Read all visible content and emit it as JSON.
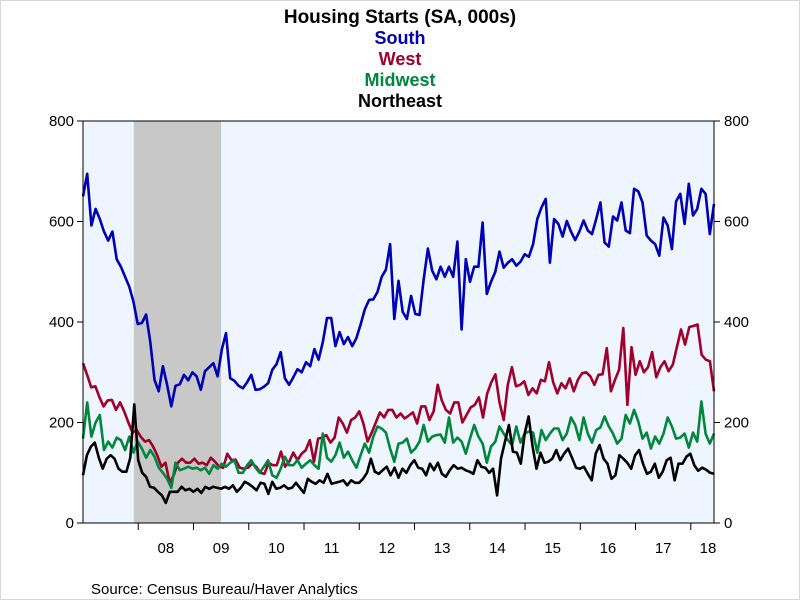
{
  "chart_data": {
    "type": "line",
    "title": "Housing Starts (SA, 000s)",
    "source": "Source:  Census Bureau/Haver Analytics",
    "ylim": [
      0,
      800
    ],
    "yticks": [
      "0",
      "200",
      "400",
      "600",
      "800"
    ],
    "yticks_right": [
      "0",
      "200",
      "400",
      "600",
      "800"
    ],
    "xlabels": [
      "08",
      "09",
      "10",
      "11",
      "12",
      "13",
      "14",
      "15",
      "16",
      "17",
      "18"
    ],
    "recession": {
      "start": 2007.92,
      "end": 2009.5
    },
    "colors": {
      "plot_bg": "#eef5ff",
      "recession": "#c8c8c8",
      "South": "#0000b4",
      "West": "#a0002a",
      "Midwest": "#00873c",
      "Northeast": "#000000"
    },
    "x_start": 2007.0,
    "x_end": 2018.42,
    "series": [
      {
        "name": "South",
        "values": [
          650,
          695,
          592,
          625,
          605,
          580,
          562,
          580,
          525,
          510,
          490,
          470,
          440,
          396,
          398,
          415,
          360,
          285,
          262,
          312,
          275,
          232,
          273,
          276,
          295,
          284,
          300,
          292,
          265,
          302,
          310,
          318,
          292,
          345,
          378,
          288,
          283,
          273,
          268,
          280,
          295,
          265,
          266,
          271,
          278,
          305,
          316,
          340,
          288,
          275,
          290,
          306,
          300,
          320,
          312,
          346,
          325,
          360,
          408,
          408,
          352,
          380,
          356,
          370,
          352,
          368,
          395,
          425,
          444,
          445,
          460,
          490,
          504,
          555,
          406,
          482,
          420,
          406,
          452,
          416,
          414,
          485,
          546,
          502,
          485,
          510,
          490,
          510,
          490,
          560,
          385,
          525,
          480,
          510,
          510,
          598,
          456,
          480,
          500,
          540,
          508,
          518,
          525,
          512,
          520,
          535,
          530,
          555,
          605,
          628,
          645,
          518,
          605,
          595,
          570,
          601,
          580,
          563,
          580,
          602,
          582,
          575,
          605,
          638,
          558,
          550,
          610,
          602,
          638,
          582,
          577,
          665,
          660,
          638,
          572,
          562,
          555,
          532,
          608,
          592,
          545,
          640,
          655,
          595,
          675,
          612,
          625,
          665,
          655,
          575,
          635
        ]
      },
      {
        "name": "West",
        "values": [
          318,
          295,
          270,
          272,
          250,
          232,
          244,
          245,
          225,
          240,
          222,
          200,
          180,
          185,
          172,
          162,
          165,
          152,
          135,
          112,
          120,
          80,
          95,
          120,
          128,
          120,
          120,
          128,
          118,
          120,
          115,
          130,
          122,
          112,
          110,
          138,
          125,
          126,
          110,
          108,
          110,
          118,
          112,
          100,
          98,
          120,
          115,
          115,
          142,
          112,
          122,
          140,
          125,
          138,
          145,
          165,
          122,
          168,
          170,
          175,
          160,
          170,
          210,
          198,
          180,
          205,
          210,
          222,
          198,
          162,
          180,
          200,
          220,
          210,
          225,
          225,
          210,
          218,
          208,
          214,
          220,
          198,
          232,
          232,
          205,
          222,
          275,
          244,
          225,
          218,
          240,
          240,
          200,
          215,
          230,
          235,
          250,
          210,
          258,
          280,
          296,
          240,
          205,
          275,
          310,
          272,
          275,
          282,
          255,
          268,
          258,
          285,
          282,
          320,
          280,
          258,
          278,
          268,
          288,
          262,
          285,
          298,
          300,
          292,
          275,
          295,
          296,
          348,
          262,
          285,
          305,
          388,
          235,
          350,
          295,
          322,
          300,
          310,
          340,
          290,
          310,
          322,
          302,
          315,
          350,
          385,
          355,
          390,
          392,
          395,
          335,
          325,
          322,
          262
        ]
      },
      {
        "name": "Midwest",
        "values": [
          168,
          240,
          172,
          200,
          215,
          145,
          162,
          150,
          170,
          165,
          145,
          172,
          140,
          162,
          148,
          130,
          145,
          132,
          110,
          100,
          88,
          70,
          120,
          105,
          108,
          112,
          108,
          110,
          105,
          110,
          98,
          115,
          108,
          118,
          112,
          120,
          125,
          100,
          100,
          115,
          125,
          110,
          100,
          112,
          125,
          95,
          90,
          108,
          132,
          115,
          115,
          125,
          110,
          118,
          125,
          115,
          108,
          178,
          130,
          122,
          135,
          160,
          130,
          142,
          125,
          110,
          135,
          158,
          140,
          172,
          192,
          188,
          180,
          148,
          122,
          158,
          160,
          168,
          140,
          148,
          162,
          195,
          162,
          172,
          175,
          176,
          160,
          210,
          160,
          170,
          162,
          138,
          168,
          195,
          172,
          158,
          120,
          152,
          162,
          192,
          178,
          165,
          155,
          192,
          160,
          178,
          182,
          180,
          140,
          185,
          165,
          178,
          188,
          188,
          165,
          178,
          210,
          195,
          165,
          210,
          178,
          160,
          185,
          190,
          212,
          192,
          178,
          158,
          168,
          215,
          198,
          225,
          202,
          168,
          180,
          148,
          172,
          158,
          178,
          210,
          192,
          168,
          170,
          178,
          150,
          180,
          162,
          242,
          178,
          158,
          178
        ]
      },
      {
        "name": "Northeast",
        "values": [
          95,
          135,
          152,
          160,
          130,
          108,
          128,
          135,
          128,
          108,
          102,
          102,
          130,
          236,
          125,
          100,
          92,
          72,
          70,
          62,
          55,
          40,
          62,
          62,
          62,
          72,
          65,
          68,
          62,
          68,
          60,
          72,
          68,
          72,
          70,
          68,
          72,
          68,
          75,
          62,
          70,
          82,
          78,
          72,
          65,
          80,
          78,
          58,
          82,
          68,
          70,
          75,
          68,
          70,
          80,
          70,
          60,
          88,
          82,
          78,
          85,
          80,
          98,
          78,
          80,
          82,
          85,
          75,
          85,
          80,
          80,
          88,
          100,
          128,
          102,
          98,
          105,
          112,
          95,
          110,
          90,
          108,
          100,
          115,
          125,
          110,
          108,
          95,
          118,
          105,
          120,
          98,
          92,
          105,
          115,
          108,
          110,
          105,
          102,
          98,
          125,
          112,
          110,
          100,
          108,
          55,
          128,
          162,
          195,
          142,
          140,
          118,
          178,
          212,
          152,
          108,
          140,
          120,
          122,
          128,
          145,
          125,
          138,
          148,
          130,
          110,
          108,
          112,
          98,
          85,
          138,
          155,
          128,
          118,
          88,
          95,
          135,
          128,
          120,
          108,
          135,
          145,
          118,
          98,
          102,
          118,
          90,
          102,
          125,
          130,
          85,
          118,
          118,
          132,
          138,
          115,
          104,
          110,
          106,
          100,
          98
        ]
      }
    ]
  }
}
